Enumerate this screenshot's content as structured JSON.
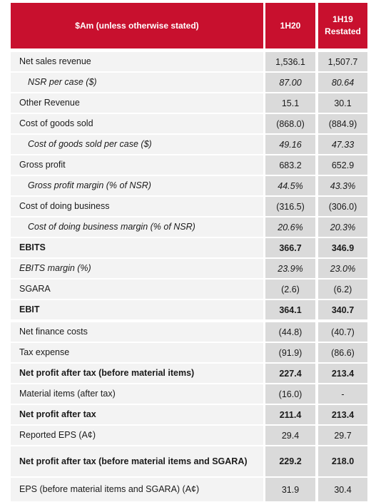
{
  "table": {
    "header": [
      "$Am (unless otherwise stated)",
      "1H20",
      "1H19 Restated"
    ],
    "rows": [
      [
        "Net sales revenue",
        "1,536.1",
        "1,507.7"
      ],
      [
        "NSR per case ($)",
        "87.00",
        "80.64"
      ],
      [
        "Other Revenue",
        "15.1",
        "30.1"
      ],
      [
        "Cost of goods sold",
        "(868.0)",
        "(884.9)"
      ],
      [
        "Cost of goods sold per case ($)",
        "49.16",
        "47.33"
      ],
      [
        "Gross profit",
        "683.2",
        "652.9"
      ],
      [
        "Gross profit margin (% of NSR)",
        "44.5%",
        "43.3%"
      ],
      [
        "Cost of doing business",
        "(316.5)",
        "(306.0)"
      ],
      [
        "Cost of doing business margin (% of NSR)",
        "20.6%",
        "20.3%"
      ],
      [
        "EBITS",
        "366.7",
        "346.9"
      ],
      [
        "EBITS margin (%)",
        "23.9%",
        "23.0%"
      ],
      [
        "SGARA",
        "(2.6)",
        "(6.2)"
      ],
      [
        "EBIT",
        "364.1",
        "340.7"
      ],
      [
        "Net finance costs",
        "(44.8)",
        "(40.7)"
      ],
      [
        "Tax expense",
        "(91.9)",
        "(86.6)"
      ],
      [
        "Net profit after tax (before material items)",
        "227.4",
        "213.4"
      ],
      [
        "Material items (after tax)",
        "(16.0)",
        "-"
      ],
      [
        "Net profit after tax",
        "211.4",
        "213.4"
      ],
      [
        "Reported EPS (A¢)",
        "29.4",
        "29.7"
      ],
      [
        "Net profit after tax (before material items and SGARA)",
        "229.2",
        "218.0"
      ],
      [
        "EPS (before material items and SGARA) (A¢)",
        "31.9",
        "30.4"
      ]
    ]
  }
}
